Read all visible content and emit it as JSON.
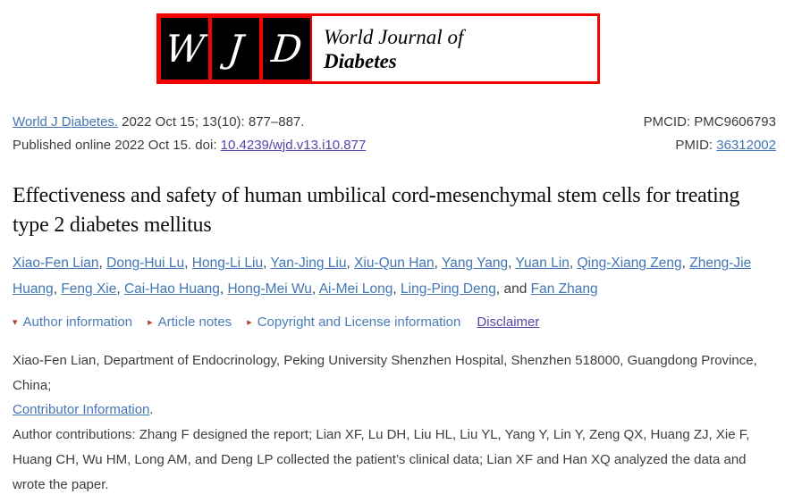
{
  "logo": {
    "letters": [
      "W",
      "J",
      "D"
    ],
    "journal_line1": "World Journal of",
    "journal_line2": "Diabetes"
  },
  "citation": {
    "journal_link": "World J Diabetes.",
    "citation_text": "2022 Oct 15; 13(10): 877–887.",
    "published_text": "Published online 2022 Oct 15. doi:",
    "doi_link": "10.4239/wjd.v13.i10.877",
    "pmcid_label": "PMCID:",
    "pmcid_value": "PMC9606793",
    "pmid_label": "PMID:",
    "pmid_link": "36312002"
  },
  "title": "Effectiveness and safety of human umbilical cord-mesenchymal stem cells for treating type 2 diabetes mellitus",
  "authors": [
    "Xiao-Fen Lian",
    "Dong-Hui Lu",
    "Hong-Li Liu",
    "Yan-Jing Liu",
    "Xiu-Qun Han",
    "Yang Yang",
    "Yuan Lin",
    "Qing-Xiang Zeng",
    "Zheng-Jie Huang",
    "Feng Xie",
    "Cai-Hao Huang",
    "Hong-Mei Wu",
    "Ai-Mei Long",
    "Ling-Ping Deng",
    "Fan Zhang"
  ],
  "authors_conjunction": "and",
  "article_meta": {
    "toggles": [
      {
        "label": "Author information",
        "state": "expanded"
      },
      {
        "label": "Article notes",
        "state": "collapsed"
      },
      {
        "label": "Copyright and License information",
        "state": "collapsed"
      }
    ],
    "disclaimer_label": "Disclaimer"
  },
  "affiliation": "Xiao-Fen Lian, Department of Endocrinology, Peking University Shenzhen Hospital, Shenzhen 518000, Guangdong Province, China;",
  "contributor": {
    "link_label": "Contributor Information",
    "suffix": "."
  },
  "contributions": "Author contributions: Zhang F designed the report; Lian XF, Lu DH, Liu HL, Liu YL, Yang Y, Lin Y, Zeng QX, Huang ZJ, Xie F, Huang CH, Wu HM, Long AM, and Deng LP collected the patient’s clinical data; Lian XF and Han XQ analyzed the data and wrote the paper.",
  "colors": {
    "brand-red": "#f40202",
    "link-blue": "#4276b4",
    "visited-purple": "#5a43a8",
    "toggle-blue": "#4b7cb8",
    "marker-brick": "#b5442f",
    "body-text": "#3d3d3d"
  }
}
